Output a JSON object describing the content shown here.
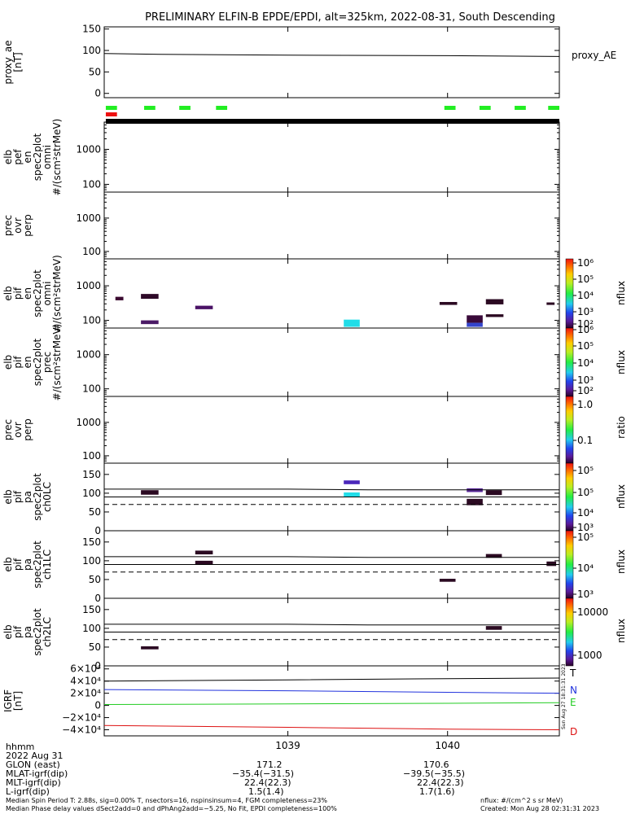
{
  "title": "PRELIMINARY ELFIN-B EPDE/EPDI, alt=325km, 2022-08-31, South Descending",
  "colors": {
    "frame": "#000000",
    "green": "#22ee22",
    "red": "#ee1111",
    "igrf_T": "#000000",
    "igrf_N": "#2233dd",
    "igrf_E": "#22cc22",
    "igrf_D": "#dd1111"
  },
  "legends": {
    "proxy": "proxy_AE",
    "T": "T",
    "N": "N",
    "E": "E",
    "D": "D"
  },
  "colorbars": [
    {
      "label": "nflux",
      "ticks": [
        "10⁶",
        "10⁵",
        "10⁴",
        "10³",
        "10²"
      ]
    },
    {
      "label": "nflux",
      "ticks": [
        "10⁶",
        "10⁵",
        "10⁴",
        "10³",
        "10²"
      ]
    },
    {
      "label": "ratio",
      "ticks": [
        "1.0",
        "0.1"
      ]
    },
    {
      "label": "nflux",
      "ticks": [
        "10⁵",
        "10⁵",
        "10⁴",
        "10³"
      ]
    },
    {
      "label": "nflux",
      "ticks": [
        "10⁵",
        "10⁴",
        "10³"
      ]
    },
    {
      "label": "nflux",
      "ticks": [
        "10000",
        "1000"
      ]
    }
  ],
  "sidebar_text": "Sun Aug 27 18:31:31 2023",
  "xaxis": {
    "ticks": [
      {
        "t": 1039,
        "label": "1039"
      },
      {
        "t": 1040,
        "label": "1040"
      }
    ],
    "range": [
      1037.85,
      1040.7
    ]
  },
  "footer": {
    "row_labels": [
      "hhmm",
      "2022 Aug 31",
      "GLON (east)",
      "MLAT-igrf(dip)",
      "MLT-igrf(dip)",
      "L-igrf(dip)"
    ],
    "col1": [
      "",
      "",
      "171.2",
      "−35.4(−31.5)",
      "22.4(22.3)",
      "1.5(1.4)"
    ],
    "col2": [
      "",
      "",
      "170.6",
      "−39.5(−35.5)",
      "22.4(22.3)",
      "1.7(1.6)"
    ],
    "line1_left": "Median Spin Period T: 2.88s, sig=0.00% T, nsectors=16, nspinsinsum=4, FGM completeness=23%",
    "line1_right": "nflux: #/(cm^2 s sr MeV)",
    "line2_left": "Median Phase delay values dSect2add=0 and dPhAng2add=−5.25, No Fit, EPDI completeness=100%",
    "line2_right": "Created: Mon Aug 28 02:31:31 2023"
  },
  "chart_data": [
    {
      "type": "line",
      "ylabel": "proxy_ae [nT]",
      "ylim": [
        -10,
        155
      ],
      "yticks": [
        "150",
        "100",
        "50",
        "0"
      ],
      "series": [
        {
          "x": [
            1037.85,
            1038.2,
            1039.0,
            1040.0,
            1040.7
          ],
          "y": [
            93,
            91,
            89,
            88,
            86
          ]
        }
      ]
    },
    {
      "type": "indicator",
      "green_segments": [
        [
          1037.86,
          1037.93
        ],
        [
          1038.1,
          1038.17
        ],
        [
          1038.32,
          1038.39
        ],
        [
          1038.55,
          1038.62
        ],
        [
          1039.98,
          1040.05
        ],
        [
          1040.2,
          1040.27
        ],
        [
          1040.42,
          1040.49
        ],
        [
          1040.63,
          1040.7
        ]
      ],
      "red_segments": [
        [
          1037.86,
          1037.93
        ]
      ],
      "black_segments": [
        [
          1037.86,
          1040.7
        ]
      ]
    },
    {
      "type": "heatmap",
      "ylabel": "elb pef en spec2plot omni #/(scm²strMeV)",
      "ylim_log": [
        60,
        6000
      ],
      "yticks": [
        "1000",
        "100"
      ],
      "cells": []
    },
    {
      "type": "heatmap",
      "ylabel": "prec ovr perp",
      "ylim_log": [
        60,
        6000
      ],
      "yticks": [
        "1000",
        "100"
      ],
      "cells": []
    },
    {
      "type": "heatmap",
      "ylabel": "elb pif en spec2plot omni #/(scm²strMeV)",
      "ylim_log": [
        60,
        6000
      ],
      "yticks": [
        "1000",
        "100"
      ],
      "cells": [
        {
          "x0": 1037.92,
          "x1": 1037.97,
          "y0": 380,
          "y1": 480,
          "color": "#3a0a30"
        },
        {
          "x0": 1038.08,
          "x1": 1038.19,
          "y0": 420,
          "y1": 580,
          "color": "#2e0a28"
        },
        {
          "x0": 1038.08,
          "x1": 1038.19,
          "y0": 78,
          "y1": 100,
          "color": "#4b1a66"
        },
        {
          "x0": 1038.42,
          "x1": 1038.53,
          "y0": 210,
          "y1": 265,
          "color": "#4a1266"
        },
        {
          "x0": 1039.35,
          "x1": 1039.45,
          "y0": 65,
          "y1": 105,
          "color": "#22dde8"
        },
        {
          "x0": 1039.95,
          "x1": 1040.06,
          "y0": 280,
          "y1": 340,
          "color": "#2b0a22"
        },
        {
          "x0": 1040.12,
          "x1": 1040.22,
          "y0": 85,
          "y1": 140,
          "color": "#3a0a3a"
        },
        {
          "x0": 1040.12,
          "x1": 1040.22,
          "y0": 65,
          "y1": 85,
          "color": "#3344cc"
        },
        {
          "x0": 1040.24,
          "x1": 1040.35,
          "y0": 290,
          "y1": 410,
          "color": "#2b0a22"
        },
        {
          "x0": 1040.24,
          "x1": 1040.35,
          "y0": 125,
          "y1": 150,
          "color": "#2b0a22"
        },
        {
          "x0": 1040.62,
          "x1": 1040.67,
          "y0": 280,
          "y1": 330,
          "color": "#2b0a22"
        }
      ]
    },
    {
      "type": "heatmap",
      "ylabel": "elb pif en spec2plot prec #/(scm²strMeV)",
      "ylim_log": [
        60,
        6000
      ],
      "yticks": [
        "1000",
        "100"
      ],
      "cells": []
    },
    {
      "type": "heatmap",
      "ylabel": "prec ovr perp",
      "ylim_log": [
        60,
        6000
      ],
      "yticks": [
        "1000",
        "100"
      ],
      "cells": []
    },
    {
      "type": "heatmap",
      "ylabel": "elb pif pa spec2plot ch0LC",
      "ylim": [
        0,
        180
      ],
      "yticks": [
        "150",
        "100",
        "50",
        "0"
      ],
      "lines": [
        {
          "y": [
            111,
            111,
            109,
            109
          ],
          "x": [
            1037.85,
            1039.0,
            1039.5,
            1040.7
          ],
          "style": "solid"
        },
        {
          "y": [
            90,
            90
          ],
          "x": [
            1037.85,
            1040.7
          ],
          "style": "solid"
        },
        {
          "y": [
            70,
            70
          ],
          "x": [
            1037.85,
            1040.7
          ],
          "style": "dashed"
        }
      ],
      "cells": [
        {
          "x0": 1038.08,
          "x1": 1038.19,
          "y0": 96,
          "y1": 108,
          "color": "#2b0a22"
        },
        {
          "x0": 1039.35,
          "x1": 1039.45,
          "y0": 124,
          "y1": 134,
          "color": "#4b28bb"
        },
        {
          "x0": 1039.35,
          "x1": 1039.45,
          "y0": 90,
          "y1": 102,
          "color": "#22dde8"
        },
        {
          "x0": 1040.12,
          "x1": 1040.22,
          "y0": 103,
          "y1": 113,
          "color": "#5a2a9a"
        },
        {
          "x0": 1040.12,
          "x1": 1040.22,
          "y0": 68,
          "y1": 85,
          "color": "#2b0a22"
        },
        {
          "x0": 1040.24,
          "x1": 1040.34,
          "y0": 95,
          "y1": 108,
          "color": "#2b0a22"
        }
      ]
    },
    {
      "type": "heatmap",
      "ylabel": "elb pif pa spec2plot ch1LC",
      "ylim": [
        0,
        180
      ],
      "yticks": [
        "150",
        "100",
        "50",
        "0"
      ],
      "lines": [
        {
          "y": [
            111,
            111,
            109,
            109
          ],
          "x": [
            1037.85,
            1039.0,
            1039.5,
            1040.7
          ],
          "style": "solid"
        },
        {
          "y": [
            90,
            90
          ],
          "x": [
            1037.85,
            1040.7
          ],
          "style": "solid"
        },
        {
          "y": [
            70,
            70
          ],
          "x": [
            1037.85,
            1040.7
          ],
          "style": "dashed"
        }
      ],
      "cells": [
        {
          "x0": 1038.42,
          "x1": 1038.53,
          "y0": 117,
          "y1": 127,
          "color": "#2b0a22"
        },
        {
          "x0": 1038.42,
          "x1": 1038.53,
          "y0": 89,
          "y1": 100,
          "color": "#2b0a22"
        },
        {
          "x0": 1039.95,
          "x1": 1040.05,
          "y0": 44,
          "y1": 52,
          "color": "#2b0a22"
        },
        {
          "x0": 1040.24,
          "x1": 1040.34,
          "y0": 108,
          "y1": 118,
          "color": "#2b0a22"
        },
        {
          "x0": 1040.62,
          "x1": 1040.68,
          "y0": 86,
          "y1": 98,
          "color": "#2b0a22"
        }
      ]
    },
    {
      "type": "heatmap",
      "ylabel": "elb pif pa spec2plot ch2LC",
      "ylim": [
        0,
        180
      ],
      "yticks": [
        "150",
        "100",
        "50",
        "0"
      ],
      "lines": [
        {
          "y": [
            111,
            111,
            109,
            109
          ],
          "x": [
            1037.85,
            1039.0,
            1039.5,
            1040.7
          ],
          "style": "solid"
        },
        {
          "y": [
            90,
            90
          ],
          "x": [
            1037.85,
            1040.7
          ],
          "style": "solid"
        },
        {
          "y": [
            70,
            70
          ],
          "x": [
            1037.85,
            1040.7
          ],
          "style": "dashed"
        }
      ],
      "cells": [
        {
          "x0": 1038.08,
          "x1": 1038.19,
          "y0": 44,
          "y1": 52,
          "color": "#2b0a22"
        },
        {
          "x0": 1040.24,
          "x1": 1040.34,
          "y0": 96,
          "y1": 106,
          "color": "#2b0a22"
        }
      ]
    },
    {
      "type": "line",
      "ylabel": "IGRF [nT]",
      "ylim": [
        -50000,
        65000
      ],
      "yticks": [
        "6×10⁴",
        "4×10⁴",
        "2×10⁴",
        "0",
        "−2×10⁴",
        "−4×10⁴"
      ],
      "ytick_values": [
        60000,
        40000,
        20000,
        0,
        -20000,
        -40000
      ],
      "series": [
        {
          "name": "T",
          "x": [
            1037.85,
            1039.0,
            1040.0,
            1040.7
          ],
          "y": [
            40000,
            42000,
            44000,
            45000
          ]
        },
        {
          "name": "N",
          "x": [
            1037.85,
            1039.0,
            1040.0,
            1040.7
          ],
          "y": [
            26000,
            24000,
            21500,
            20000
          ]
        },
        {
          "name": "E",
          "x": [
            1037.85,
            1039.0,
            1040.0,
            1040.7
          ],
          "y": [
            1500,
            2500,
            3500,
            4500
          ]
        },
        {
          "name": "D",
          "x": [
            1037.85,
            1039.0,
            1040.0,
            1040.7
          ],
          "y": [
            -33000,
            -36000,
            -39000,
            -40000
          ]
        }
      ]
    }
  ]
}
